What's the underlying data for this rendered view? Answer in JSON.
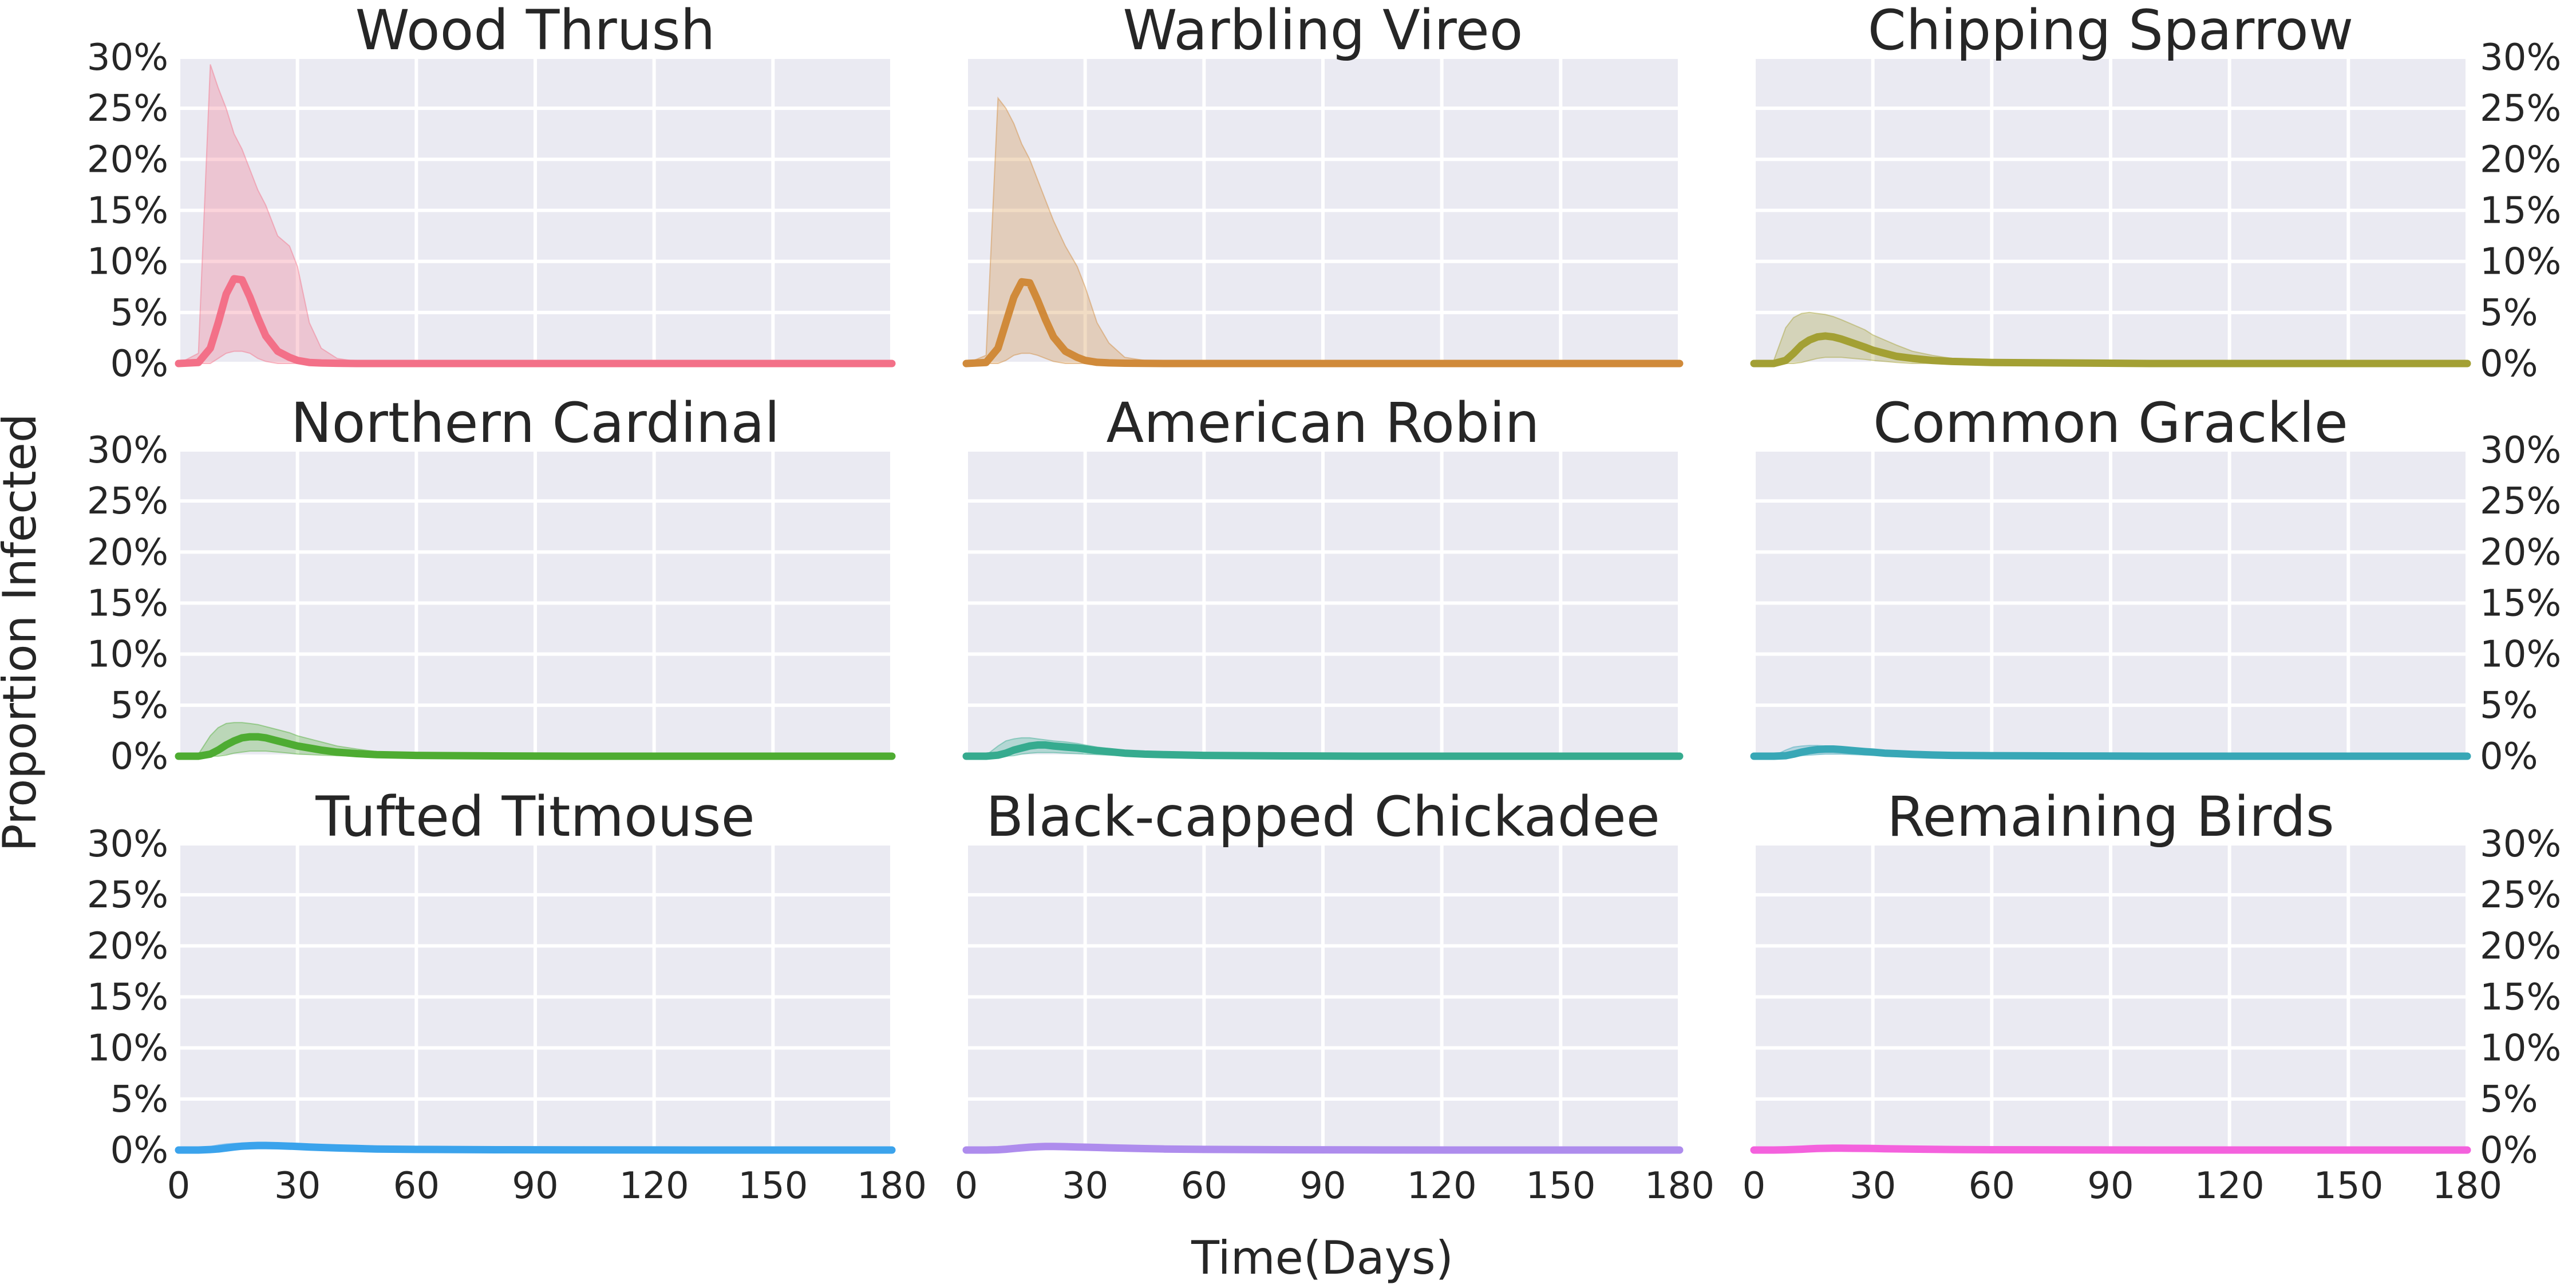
{
  "chart_data": {
    "type": "line",
    "layout": "3x3 small multiples, shared axes",
    "xlabel": "Time(Days)",
    "ylabel": "Proportion Infected",
    "xlim": [
      0,
      180
    ],
    "ylim": [
      0,
      30
    ],
    "x_ticks": [
      0,
      30,
      60,
      90,
      120,
      150,
      180
    ],
    "x_tick_labels": [
      "0",
      "30",
      "60",
      "90",
      "120",
      "150",
      "180"
    ],
    "y_ticks": [
      0,
      5,
      10,
      15,
      20,
      25,
      30
    ],
    "y_tick_labels": [
      "0%",
      "5%",
      "10%",
      "15%",
      "20%",
      "25%",
      "30%"
    ],
    "grid": true,
    "style": "line = mean proportion infected, shaded band = range across runs",
    "x": [
      0,
      5,
      8,
      10,
      12,
      14,
      16,
      18,
      20,
      22,
      25,
      28,
      30,
      33,
      36,
      40,
      45,
      50,
      60,
      80,
      100,
      130,
      160,
      180
    ],
    "panels": [
      {
        "title": "Wood Thrush",
        "color": "#f37088",
        "mean": [
          0,
          0.1,
          1.5,
          4.0,
          6.8,
          8.3,
          8.2,
          6.5,
          4.5,
          2.7,
          1.2,
          0.6,
          0.3,
          0.1,
          0.05,
          0.02,
          0,
          0,
          0,
          0,
          0,
          0,
          0,
          0
        ],
        "upper": [
          0,
          1.0,
          29.3,
          27.0,
          25.0,
          22.5,
          21.0,
          19.0,
          17.0,
          15.5,
          12.5,
          11.5,
          9.5,
          4.0,
          1.5,
          0.5,
          0.2,
          0.1,
          0,
          0,
          0,
          0,
          0,
          0
        ],
        "lower": [
          0,
          0,
          0,
          0.5,
          1.0,
          1.2,
          1.2,
          1.0,
          0.5,
          0.2,
          0,
          0,
          0,
          0,
          0,
          0,
          0,
          0,
          0,
          0,
          0,
          0,
          0,
          0
        ]
      },
      {
        "title": "Warbling Vireo",
        "color": "#d08a3a",
        "mean": [
          0,
          0.1,
          1.5,
          4.0,
          6.5,
          8.0,
          7.9,
          6.2,
          4.3,
          2.6,
          1.2,
          0.6,
          0.3,
          0.12,
          0.06,
          0.03,
          0.01,
          0,
          0,
          0,
          0,
          0,
          0,
          0
        ],
        "upper": [
          0,
          0.8,
          26.0,
          25.0,
          23.5,
          21.5,
          20.0,
          18.0,
          16.0,
          14.0,
          11.5,
          9.5,
          7.5,
          4.0,
          2.0,
          0.6,
          0.3,
          0.1,
          0,
          0,
          0,
          0,
          0,
          0
        ],
        "lower": [
          0,
          0,
          0,
          0.3,
          0.8,
          1.0,
          1.0,
          0.8,
          0.5,
          0.2,
          0,
          0,
          0,
          0,
          0,
          0,
          0,
          0,
          0,
          0,
          0,
          0,
          0,
          0
        ]
      },
      {
        "title": "Chipping Sparrow",
        "color": "#a3a034",
        "mean": [
          0,
          0,
          0.3,
          1.0,
          1.8,
          2.3,
          2.6,
          2.7,
          2.6,
          2.4,
          2.0,
          1.6,
          1.3,
          1.0,
          0.7,
          0.5,
          0.3,
          0.2,
          0.1,
          0.05,
          0,
          0,
          0,
          0
        ],
        "upper": [
          0,
          0.3,
          3.5,
          4.5,
          4.9,
          5.0,
          4.9,
          4.8,
          4.6,
          4.3,
          3.8,
          3.3,
          2.8,
          2.3,
          1.8,
          1.2,
          0.8,
          0.5,
          0.3,
          0.1,
          0.05,
          0,
          0,
          0
        ],
        "lower": [
          0,
          0,
          0,
          0,
          0.1,
          0.3,
          0.5,
          0.6,
          0.6,
          0.6,
          0.5,
          0.4,
          0.3,
          0.2,
          0.1,
          0,
          0,
          0,
          0,
          0,
          0,
          0,
          0,
          0
        ]
      },
      {
        "title": "Northern Cardinal",
        "color": "#4eac32",
        "mean": [
          0,
          0,
          0.2,
          0.6,
          1.1,
          1.5,
          1.8,
          1.9,
          1.9,
          1.8,
          1.5,
          1.2,
          1.0,
          0.8,
          0.6,
          0.4,
          0.25,
          0.15,
          0.08,
          0.03,
          0,
          0,
          0,
          0
        ],
        "upper": [
          0,
          0.2,
          2.0,
          2.8,
          3.2,
          3.3,
          3.3,
          3.2,
          3.1,
          2.9,
          2.6,
          2.3,
          2.0,
          1.7,
          1.4,
          1.0,
          0.7,
          0.45,
          0.25,
          0.1,
          0.05,
          0,
          0,
          0
        ],
        "lower": [
          0,
          0,
          0,
          0,
          0.1,
          0.3,
          0.4,
          0.5,
          0.5,
          0.5,
          0.4,
          0.3,
          0.2,
          0.15,
          0.1,
          0.05,
          0,
          0,
          0,
          0,
          0,
          0,
          0,
          0
        ]
      },
      {
        "title": "American Robin",
        "color": "#36ab8f",
        "mean": [
          0,
          0,
          0.1,
          0.3,
          0.6,
          0.8,
          1.0,
          1.1,
          1.1,
          1.0,
          0.9,
          0.8,
          0.7,
          0.55,
          0.45,
          0.3,
          0.2,
          0.15,
          0.08,
          0.03,
          0,
          0,
          0,
          0
        ],
        "upper": [
          0,
          0.1,
          1.0,
          1.5,
          1.7,
          1.8,
          1.8,
          1.7,
          1.6,
          1.5,
          1.4,
          1.25,
          1.1,
          0.9,
          0.75,
          0.55,
          0.4,
          0.3,
          0.2,
          0.1,
          0.05,
          0,
          0,
          0
        ],
        "lower": [
          0,
          0,
          0,
          0,
          0.05,
          0.2,
          0.3,
          0.35,
          0.35,
          0.35,
          0.3,
          0.25,
          0.2,
          0.15,
          0.1,
          0.05,
          0,
          0,
          0,
          0,
          0,
          0,
          0,
          0
        ]
      },
      {
        "title": "Common Grackle",
        "color": "#38a7b6",
        "mean": [
          0,
          0,
          0.05,
          0.2,
          0.4,
          0.55,
          0.65,
          0.7,
          0.7,
          0.65,
          0.55,
          0.45,
          0.4,
          0.3,
          0.25,
          0.18,
          0.12,
          0.08,
          0.05,
          0.02,
          0,
          0,
          0,
          0
        ],
        "upper": [
          0,
          0.05,
          0.6,
          0.9,
          1.0,
          1.05,
          1.05,
          1.0,
          0.95,
          0.9,
          0.8,
          0.7,
          0.6,
          0.5,
          0.4,
          0.3,
          0.2,
          0.15,
          0.1,
          0.05,
          0.02,
          0,
          0,
          0
        ],
        "lower": [
          0,
          0,
          0,
          0,
          0.05,
          0.1,
          0.15,
          0.2,
          0.2,
          0.2,
          0.15,
          0.12,
          0.1,
          0.08,
          0.05,
          0.02,
          0,
          0,
          0,
          0,
          0,
          0,
          0,
          0
        ]
      },
      {
        "title": "Tufted Titmouse",
        "color": "#3ba3ec",
        "mean": [
          0,
          0,
          0.05,
          0.1,
          0.2,
          0.3,
          0.38,
          0.42,
          0.45,
          0.45,
          0.42,
          0.38,
          0.35,
          0.3,
          0.25,
          0.2,
          0.15,
          0.1,
          0.06,
          0.03,
          0.01,
          0,
          0,
          0
        ],
        "upper": [
          0,
          0.05,
          0.35,
          0.5,
          0.6,
          0.65,
          0.68,
          0.7,
          0.7,
          0.68,
          0.65,
          0.6,
          0.55,
          0.48,
          0.42,
          0.35,
          0.28,
          0.2,
          0.12,
          0.06,
          0.03,
          0,
          0,
          0
        ],
        "lower": [
          0,
          0,
          0,
          0,
          0.02,
          0.05,
          0.08,
          0.1,
          0.12,
          0.12,
          0.12,
          0.1,
          0.09,
          0.08,
          0.06,
          0.04,
          0.02,
          0,
          0,
          0,
          0,
          0,
          0,
          0
        ]
      },
      {
        "title": "Black-capped Chickadee",
        "color": "#ae8ced",
        "mean": [
          0,
          0,
          0.03,
          0.08,
          0.15,
          0.22,
          0.28,
          0.32,
          0.35,
          0.35,
          0.33,
          0.3,
          0.28,
          0.25,
          0.22,
          0.18,
          0.14,
          0.1,
          0.06,
          0.03,
          0.01,
          0,
          0,
          0
        ],
        "upper": [
          0,
          0.03,
          0.25,
          0.38,
          0.45,
          0.5,
          0.52,
          0.53,
          0.53,
          0.52,
          0.5,
          0.46,
          0.43,
          0.38,
          0.33,
          0.28,
          0.22,
          0.16,
          0.1,
          0.05,
          0.02,
          0,
          0,
          0
        ],
        "lower": [
          0,
          0,
          0,
          0,
          0.02,
          0.04,
          0.06,
          0.08,
          0.09,
          0.09,
          0.09,
          0.08,
          0.07,
          0.06,
          0.05,
          0.03,
          0.02,
          0,
          0,
          0,
          0,
          0,
          0,
          0
        ]
      },
      {
        "title": "Remaining Birds",
        "color": "#f461dd",
        "mean": [
          0,
          0,
          0.02,
          0.05,
          0.08,
          0.12,
          0.15,
          0.17,
          0.18,
          0.18,
          0.17,
          0.16,
          0.15,
          0.13,
          0.11,
          0.09,
          0.07,
          0.05,
          0.03,
          0.01,
          0,
          0,
          0,
          0
        ],
        "upper": [
          0,
          0.02,
          0.12,
          0.18,
          0.22,
          0.25,
          0.27,
          0.28,
          0.28,
          0.27,
          0.26,
          0.24,
          0.22,
          0.2,
          0.17,
          0.14,
          0.11,
          0.08,
          0.05,
          0.02,
          0.01,
          0,
          0,
          0
        ],
        "lower": [
          0,
          0,
          0,
          0,
          0.01,
          0.02,
          0.03,
          0.04,
          0.05,
          0.05,
          0.05,
          0.04,
          0.04,
          0.03,
          0.03,
          0.02,
          0.01,
          0,
          0,
          0,
          0,
          0,
          0,
          0
        ]
      }
    ]
  }
}
